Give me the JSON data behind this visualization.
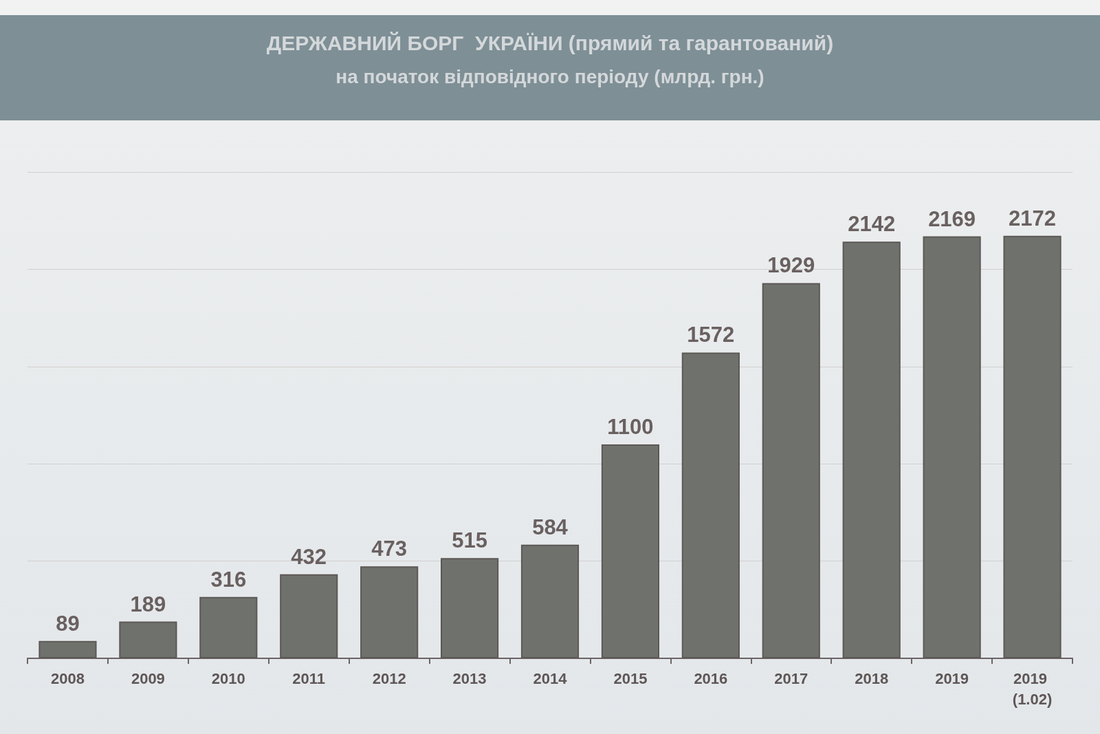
{
  "chart_data": {
    "type": "bar",
    "title": "ДЕРЖАВНИЙ БОРГ  УКРАЇНИ (прямий та гарантований)",
    "subtitle": "на початок відповідного періоду (млрд. грн.)",
    "categories": [
      "2008",
      "2009",
      "2010",
      "2011",
      "2012",
      "2013",
      "2014",
      "2015",
      "2016",
      "2017",
      "2018",
      "2019",
      "2019 (1.02)"
    ],
    "values": [
      89,
      189,
      316,
      432,
      473,
      515,
      584,
      1100,
      1572,
      1929,
      2142,
      2169,
      2172
    ],
    "color": "#6f716d",
    "ylim": [
      0,
      2500
    ],
    "yticks": [
      {
        "value": 0,
        "label": null
      },
      {
        "value": 500,
        "label": null
      },
      {
        "value": 1000,
        "label": null
      },
      {
        "value": 1500,
        "label": null
      },
      {
        "value": 2000,
        "label": null
      },
      {
        "value": 2500,
        "label": null
      }
    ],
    "grid": "y",
    "tick_labels": "x",
    "data_labels": true
  }
}
